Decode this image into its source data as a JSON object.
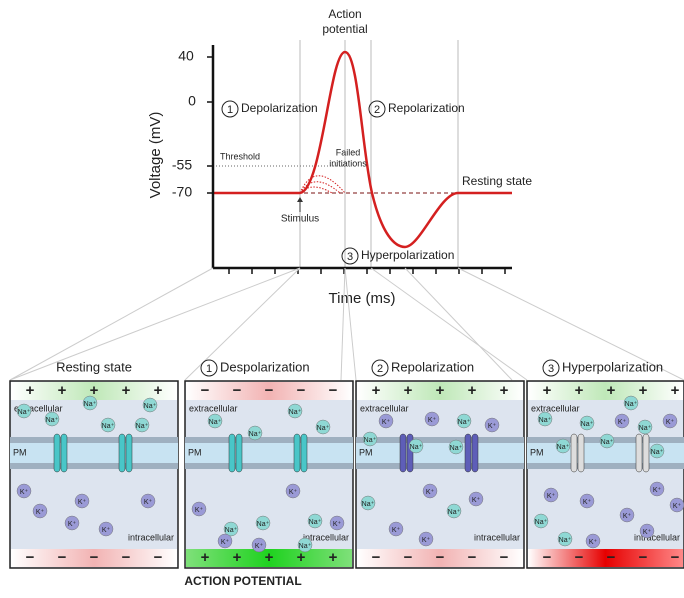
{
  "graph": {
    "y_axis_label": "Voltage (mV)",
    "x_axis_label": "Time (ms)",
    "yticks": [
      40,
      0,
      -55,
      -70
    ],
    "action_potential": [
      "Action",
      "potential"
    ],
    "failed_initiations": [
      "Failed",
      "initiations"
    ],
    "threshold": "Threshold",
    "resting_state": "Resting state",
    "stimulus": "Stimulus",
    "phases": [
      {
        "number": "1",
        "label": "Depolarization"
      },
      {
        "number": "2",
        "label": "Repolarization"
      },
      {
        "number": "3",
        "label": "Hyperpolarization"
      }
    ]
  },
  "panels": [
    {
      "title": "Resting state"
    },
    {
      "number": "1",
      "title": "Despolarization"
    },
    {
      "number": "2",
      "title": "Repolarization"
    },
    {
      "number": "3",
      "title": "Hyperpolarization"
    }
  ],
  "labels": {
    "extracellular": "extracellular",
    "intracellular": "intracellular",
    "pm": "PM",
    "na": "Na⁺",
    "k": "K⁺",
    "plus": "+",
    "minus": "−"
  },
  "footer": "ACTION POTENTIAL"
}
